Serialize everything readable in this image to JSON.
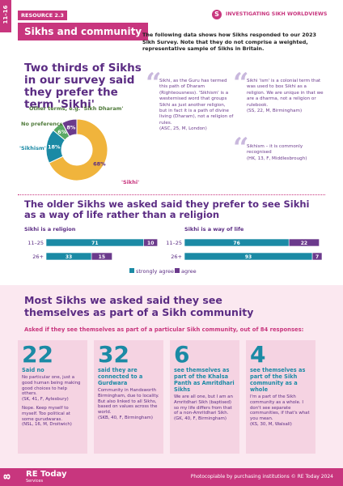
{
  "header": {
    "tab": "11–16",
    "resource": "RESOURCE 2.3",
    "logo_letter": "S",
    "series": "INVESTIGATING SIKH WORLDVIEWS",
    "title": "Sikhs and community",
    "intro": "The following data shows how Sikhs responded to our 2023 Sikh Survey. Note that they do not comprise a weighted, representative sample of Sikhs in Britain."
  },
  "terms": {
    "heading": "Two thirds of Sikhs in our survey said they prefer the term 'Sikhi'",
    "quotes": [
      {
        "text": "Sikhi, as the Guru has termed this path of Dharam (Righteousness). 'Sikhism' is a westernised word that groups Sikhi as just another religion, but in fact it is a path of divine living (Dharam), not a religion of rules.",
        "source": "(ASC, 25, M, London)"
      },
      {
        "text": "Sikhi 'ism' is a colonial term that was used to box Sikhi as a religion. We are unique in that we are a dharma, not a religion or rulebook.",
        "source": "(SS, 22, M, Birmingham)"
      },
      {
        "text": "Sikhism – it is commonly recognised",
        "source": "(HK, 13, F, Middlesbrough)"
      }
    ]
  },
  "views": {
    "heading": "The older Sikhs we asked said they prefer to see Sikhi as a way of life rather than a religion"
  },
  "chart_data": [
    {
      "type": "pie",
      "donut": true,
      "categories": [
        "'Sikhi'",
        "'Sikhism'",
        "No preference",
        "Other terms, e.g. 'Sikh Dharam'"
      ],
      "values": [
        68,
        18,
        6,
        8
      ],
      "value_labels": [
        "68%",
        "18%",
        "6%",
        "8%"
      ],
      "colors": [
        "#f0b43c",
        "#1b8aa5",
        "#5aa864",
        "#6b3a8c"
      ]
    },
    {
      "type": "bar",
      "orientation": "horizontal",
      "stacked": true,
      "xlim": [
        0,
        100
      ],
      "legend": [
        {
          "name": "strongly agree",
          "color": "#1b8aa5"
        },
        {
          "name": "agree",
          "color": "#6b3a8c"
        }
      ],
      "panels": [
        {
          "title": "Sikhi is a religion",
          "categories": [
            "11–25",
            "26+"
          ],
          "series": [
            {
              "values": [
                71,
                33
              ]
            },
            {
              "values": [
                10,
                15
              ]
            }
          ]
        },
        {
          "title": "Sikhi is a way of life",
          "categories": [
            "11–25",
            "26+"
          ],
          "series": [
            {
              "values": [
                76,
                93
              ]
            },
            {
              "values": [
                22,
                7
              ]
            }
          ]
        }
      ]
    }
  ],
  "community": {
    "heading": "Most Sikhs we asked said they see themselves as part of a Sikh community",
    "subheading": "Asked if they see themselves as part of a particular Sikh community, out of 84 responses:",
    "cards": [
      {
        "number": "22",
        "label": "Said no",
        "quotes": [
          {
            "text": "No particular one, just a good human being making good choices to help others.",
            "source": "(SK, 41, F, Aylesbury)"
          },
          {
            "text": "Nope. Keep myself to myself. Too political at some gurudwaras.",
            "source": "(NSL, 16, M, Droitwich)"
          }
        ]
      },
      {
        "number": "32",
        "label": "said they are connected to a Gurdwara",
        "quotes": [
          {
            "text": "Community in Handsworth Birmingham, due to locality. But also linked to all Sikhs, based on values across the world.",
            "source": "(SKB, 40, F, Birmingham)"
          }
        ]
      },
      {
        "number": "6",
        "label": "see themselves as part of the Khalsa Panth as Amritdhari Sikhs",
        "quotes": [
          {
            "text": "We are all one, but I am an Amritdhari Sikh (baptised) so my life differs from that of a non-Amritdhari Sikh.",
            "source": "(GK, 40, F, Birmingham)"
          }
        ]
      },
      {
        "number": "4",
        "label": "see themselves as part of the Sikh community as a whole",
        "quotes": [
          {
            "text": "I'm a part of the Sikh community as a whole. I don't see separate communities, if that's what you mean.",
            "source": "(KS, 30, M, Walsall)"
          }
        ]
      }
    ]
  },
  "footer": {
    "page": "8",
    "brand": "RE Today",
    "brand_sub": "Services",
    "note": "Photocopiable by purchasing institutions © RE Today 2024"
  }
}
